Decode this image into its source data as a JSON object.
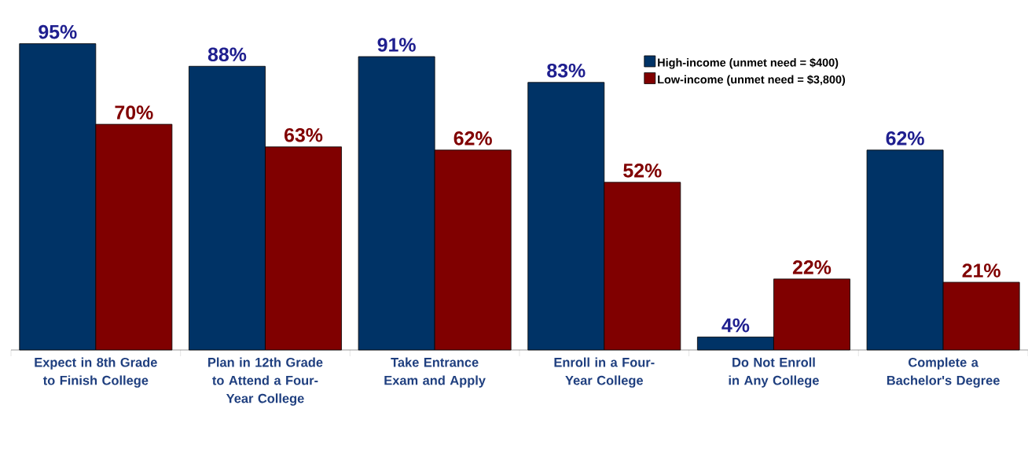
{
  "chart_data": {
    "type": "bar",
    "categories": [
      "Expect in 8th Grade to Finish College",
      "Plan in 12th Grade to Attend a Four-Year College",
      "Take Entrance Exam and Apply",
      "Enroll in a Four-Year College",
      "Do Not Enroll in Any College",
      "Complete a Bachelor's Degree"
    ],
    "series": [
      {
        "name": "High-income (unmet need = $400)",
        "color": "#003366",
        "values": [
          95,
          88,
          91,
          83,
          4,
          62
        ],
        "value_labels": [
          "95%",
          "88%",
          "91%",
          "83%",
          "4%",
          "62%"
        ]
      },
      {
        "name": "Low-income (unmet need = $3,800)",
        "color": "#800000",
        "values": [
          70,
          63,
          62,
          52,
          22,
          21
        ],
        "value_labels": [
          "70%",
          "63%",
          "62%",
          "52%",
          "22%",
          "21%"
        ]
      }
    ],
    "legend": "top right"
  }
}
